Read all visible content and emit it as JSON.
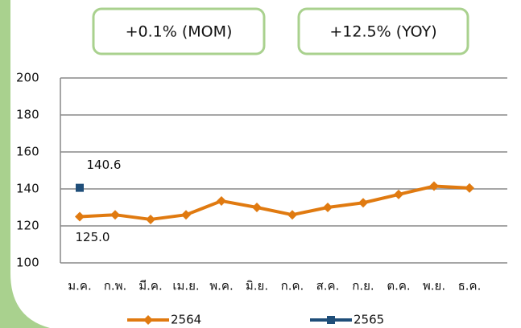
{
  "chart_data": {
    "type": "line",
    "annotations": [
      "+0.1% (MOM)",
      "+12.5% (YOY)"
    ],
    "categories": [
      "ม.ค.",
      "ก.พ.",
      "มี.ค.",
      "เม.ย.",
      "พ.ค.",
      "มิ.ย.",
      "ก.ค.",
      "ส.ค.",
      "ก.ย.",
      "ต.ค.",
      "พ.ย.",
      "ธ.ค."
    ],
    "series": [
      {
        "name": "2564",
        "color": "#e07a10",
        "marker": "diamond",
        "values": [
          125.0,
          126,
          123.5,
          126,
          133.5,
          130,
          126,
          130,
          132.5,
          137,
          141.5,
          140.5
        ],
        "value_labels": [
          "125.0",
          null,
          null,
          null,
          null,
          null,
          null,
          null,
          null,
          null,
          null,
          null
        ]
      },
      {
        "name": "2565",
        "color": "#1f4e79",
        "marker": "square",
        "values": [
          140.6,
          null,
          null,
          null,
          null,
          null,
          null,
          null,
          null,
          null,
          null,
          null
        ]
      }
    ],
    "ylim": [
      100,
      200
    ],
    "yticks": [
      100,
      120,
      140,
      160,
      180,
      200
    ],
    "grid": true
  }
}
